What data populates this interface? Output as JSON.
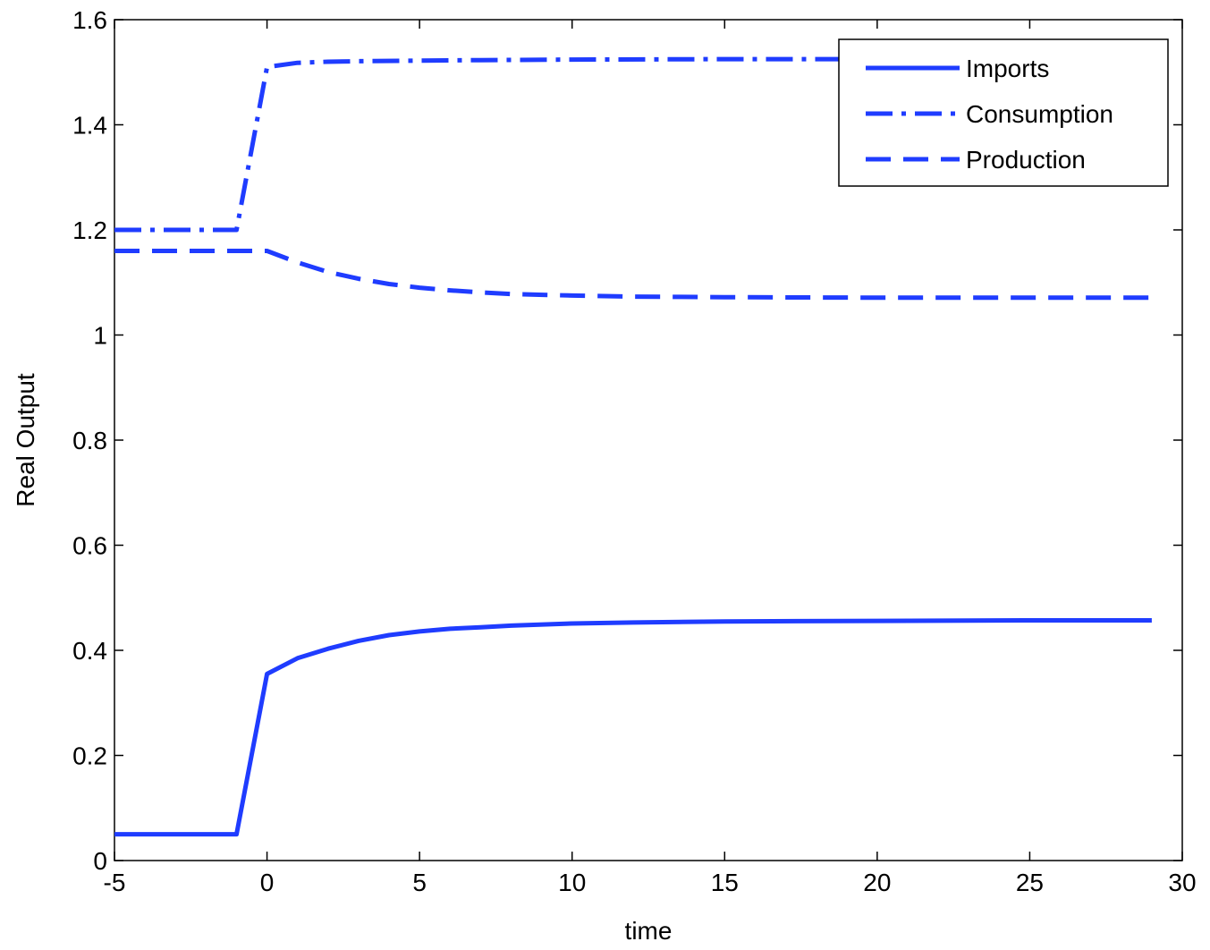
{
  "chart_data": {
    "type": "line",
    "xlabel": "time",
    "ylabel": "Real Output",
    "xlim": [
      -5,
      30
    ],
    "ylim": [
      0,
      1.6
    ],
    "xticks": [
      -5,
      0,
      5,
      10,
      15,
      20,
      25,
      30
    ],
    "yticks": [
      0,
      0.2,
      0.4,
      0.6,
      0.8,
      1,
      1.2,
      1.4,
      1.6
    ],
    "xtick_labels": [
      "-5",
      "0",
      "5",
      "10",
      "15",
      "20",
      "25",
      "30"
    ],
    "ytick_labels": [
      "0",
      "0.2",
      "0.4",
      "0.6",
      "0.8",
      "1",
      "1.2",
      "1.4",
      "1.6"
    ],
    "grid": false,
    "legend_position": "top-right",
    "series": [
      {
        "name": "Imports",
        "style": "solid",
        "color": "#1f3cff",
        "x": [
          -5,
          -1,
          0,
          1,
          2,
          3,
          4,
          5,
          6,
          7,
          8,
          10,
          12,
          15,
          20,
          25,
          29
        ],
        "y": [
          0.05,
          0.05,
          0.355,
          0.385,
          0.403,
          0.418,
          0.429,
          0.436,
          0.441,
          0.444,
          0.447,
          0.451,
          0.453,
          0.455,
          0.456,
          0.457,
          0.457
        ]
      },
      {
        "name": "Consumption",
        "style": "dashdot",
        "color": "#1f3cff",
        "x": [
          -5,
          -1,
          0,
          1,
          2,
          3,
          5,
          7,
          10,
          15,
          20,
          25,
          29
        ],
        "y": [
          1.2,
          1.2,
          1.51,
          1.518,
          1.52,
          1.521,
          1.522,
          1.523,
          1.524,
          1.525,
          1.525,
          1.525,
          1.525
        ]
      },
      {
        "name": "Production",
        "style": "dashed",
        "color": "#1f3cff",
        "x": [
          -5,
          -1,
          0,
          1,
          2,
          3,
          4,
          5,
          6,
          7,
          8,
          10,
          12,
          15,
          20,
          25,
          29
        ],
        "y": [
          1.16,
          1.16,
          1.16,
          1.138,
          1.12,
          1.107,
          1.097,
          1.09,
          1.085,
          1.081,
          1.078,
          1.075,
          1.073,
          1.072,
          1.071,
          1.071,
          1.071
        ]
      }
    ]
  }
}
